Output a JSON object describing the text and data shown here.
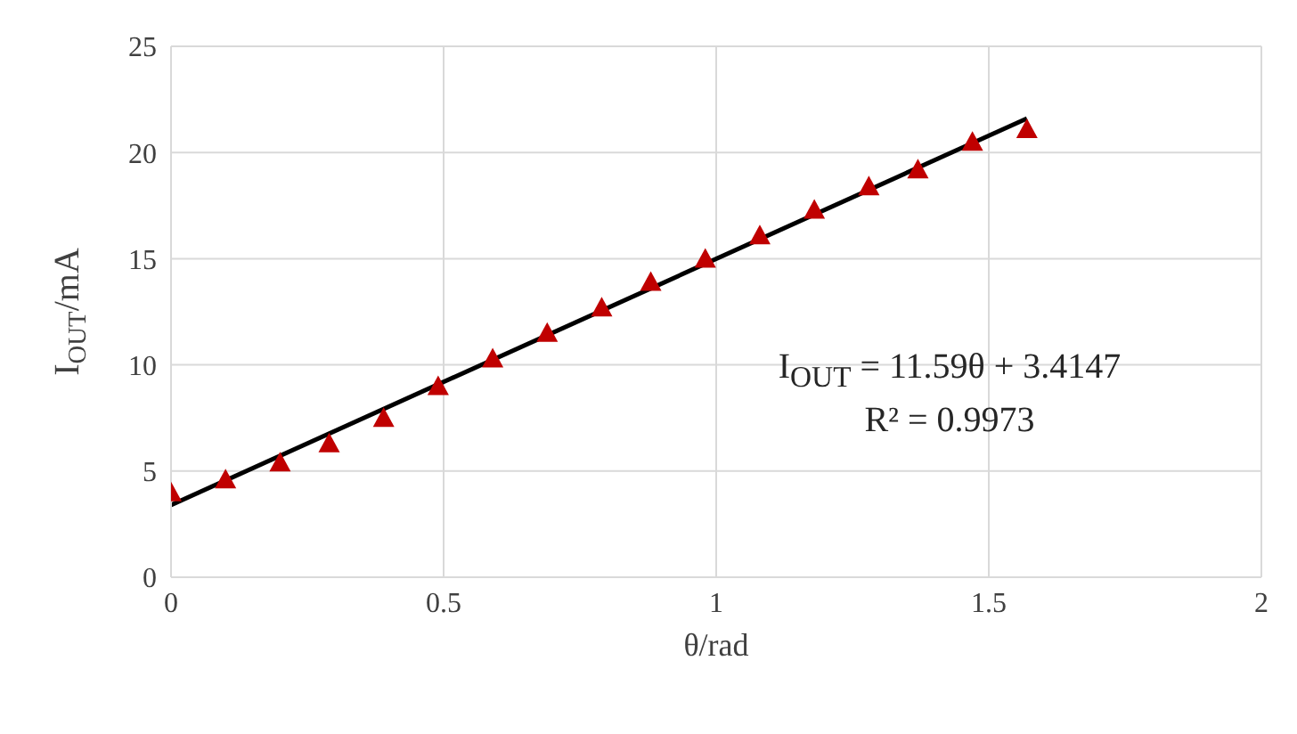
{
  "chart_data": {
    "type": "scatter",
    "xlabel": "θ/rad",
    "ylabel": "I$_{OUT}$/mA",
    "xlim": [
      0,
      2
    ],
    "xticks": [
      0,
      0.5,
      1,
      1.5,
      2
    ],
    "ylim": [
      0,
      25
    ],
    "yticks": [
      0,
      5,
      10,
      15,
      20,
      25
    ],
    "grid": true,
    "annotations": [
      "I$_{OUT}$ = 11.59θ + 3.4147",
      "R² = 0.9973"
    ],
    "series": [
      {
        "marker": "triangle",
        "color": "#c00000",
        "x": [
          0,
          0.1,
          0.2,
          0.29,
          0.39,
          0.49,
          0.59,
          0.69,
          0.79,
          0.88,
          0.98,
          1.08,
          1.18,
          1.28,
          1.37,
          1.47,
          1.57
        ],
        "values": [
          4.0,
          4.6,
          5.4,
          6.3,
          7.5,
          9.0,
          10.3,
          11.5,
          12.7,
          13.9,
          15.0,
          16.1,
          17.3,
          18.4,
          19.2,
          20.5,
          21.1
        ]
      },
      {
        "type": "line",
        "marker": "none",
        "color": "#000000",
        "x": [
          0,
          1.57
        ],
        "values": [
          3.4,
          21.6
        ]
      }
    ]
  }
}
